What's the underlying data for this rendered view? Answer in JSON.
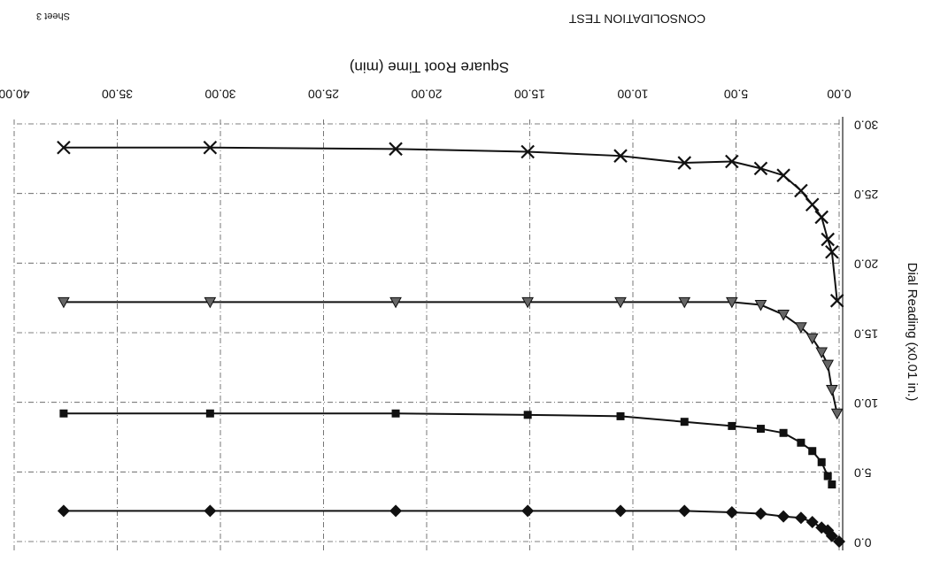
{
  "chart_data": {
    "type": "line",
    "title": "CONSOLIDATION TEST",
    "sheet_label": "Sheet 3",
    "x_label": "Square Root Time (min)",
    "y_label": "Dial Reading (x0.01 in.)",
    "rotated": 180,
    "y_inverted": true,
    "grid": true,
    "xlim": [
      0,
      40
    ],
    "ylim": [
      0,
      30
    ],
    "xticks": [
      {
        "value": 0,
        "label": "0.00"
      },
      {
        "value": 5,
        "label": "5.00"
      },
      {
        "value": 10,
        "label": "10.00"
      },
      {
        "value": 15,
        "label": "15.00"
      },
      {
        "value": 20,
        "label": "20.00"
      },
      {
        "value": 25,
        "label": "25.00"
      },
      {
        "value": 30,
        "label": "30.00"
      },
      {
        "value": 35,
        "label": "35.00"
      },
      {
        "value": 40,
        "label": "40.00"
      }
    ],
    "yticks": [
      {
        "value": 0,
        "label": "0.0"
      },
      {
        "value": 5,
        "label": "5.0"
      },
      {
        "value": 10,
        "label": "10.0"
      },
      {
        "value": 15,
        "label": "15.0"
      },
      {
        "value": 20,
        "label": "20.0"
      },
      {
        "value": 25,
        "label": "25.0"
      },
      {
        "value": 30,
        "label": "30.0"
      }
    ],
    "series": [
      {
        "marker": "diamond",
        "color": "#111111",
        "x": [
          0,
          0.35,
          0.55,
          0.85,
          1.3,
          1.85,
          2.7,
          3.8,
          5.2,
          7.5,
          10.6,
          15.1,
          21.5,
          30.5,
          37.6
        ],
        "values": [
          0.0,
          0.4,
          0.8,
          1.0,
          1.4,
          1.7,
          1.8,
          2.0,
          2.1,
          2.2,
          2.2,
          2.2,
          2.2,
          2.2,
          2.2
        ]
      },
      {
        "marker": "square",
        "color": "#111111",
        "x": [
          0.35,
          0.55,
          0.85,
          1.3,
          1.85,
          2.7,
          3.8,
          5.2,
          7.5,
          10.6,
          15.1,
          21.5,
          30.5,
          37.6
        ],
        "values": [
          4.1,
          4.7,
          5.7,
          6.5,
          7.1,
          7.8,
          8.1,
          8.3,
          8.6,
          9.0,
          9.1,
          9.2,
          9.2,
          9.2
        ]
      },
      {
        "marker": "triangle",
        "color": "#111111",
        "x": [
          0.1,
          0.35,
          0.55,
          0.85,
          1.3,
          1.85,
          2.7,
          3.8,
          5.2,
          7.5,
          10.6,
          15.1,
          21.5,
          30.5,
          37.6
        ],
        "values": [
          9.2,
          10.9,
          12.7,
          13.6,
          14.6,
          15.4,
          16.3,
          17.0,
          17.2,
          17.2,
          17.2,
          17.2,
          17.2,
          17.2,
          17.2
        ]
      },
      {
        "marker": "x",
        "color": "#111111",
        "x": [
          0.1,
          0.35,
          0.55,
          0.85,
          1.3,
          1.85,
          2.7,
          3.8,
          5.2,
          7.5,
          10.6,
          15.1,
          21.5,
          30.5,
          37.6
        ],
        "values": [
          17.3,
          20.8,
          21.7,
          23.3,
          24.2,
          25.2,
          26.3,
          26.8,
          27.3,
          27.2,
          27.7,
          28.0,
          28.2,
          28.3,
          28.3
        ]
      }
    ]
  }
}
